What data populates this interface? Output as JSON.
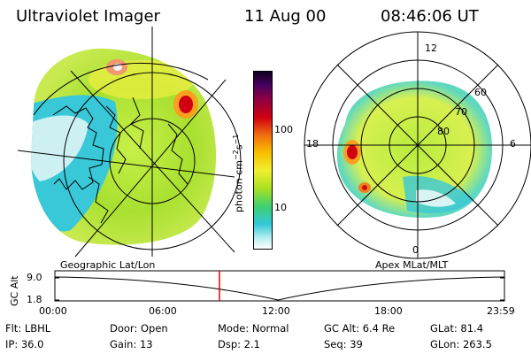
{
  "header": {
    "instrument": "Ultraviolet Imager",
    "date": "11 Aug 00",
    "time": "08:46:06 UT"
  },
  "colorbar": {
    "label": "photon cm",
    "label_sup1": "−2",
    "label_s": "s",
    "label_sup2": "−1",
    "ticks": [
      "100",
      "10"
    ]
  },
  "polar_plot": {
    "mlt_labels": [
      "12",
      "18",
      "6",
      "0"
    ],
    "lat_labels": [
      "60",
      "70",
      "80"
    ]
  },
  "projections": {
    "left_label": "Geographic Lat/Lon",
    "right_label": "Apex MLat/MLT"
  },
  "altitude_plot": {
    "ylabel": "GC Alt",
    "yticks": [
      "9.0",
      "1.8"
    ],
    "xticks": [
      "00:00",
      "06:00",
      "12:00",
      "18:00",
      "23:59"
    ],
    "current_time_fraction": 0.366
  },
  "info": {
    "filter": "Flt: LBHL",
    "ip": "IP: 36.0",
    "door": "Door: Open",
    "gain": "Gain: 13",
    "mode": "Mode: Normal",
    "dsp": "Dsp:    2.1",
    "gc_alt": "GC Alt: 6.4 Re",
    "seq": "Seq: 39",
    "glat": "GLat:  81.4",
    "glon": "GLon: 263.5"
  },
  "colors": {
    "current_time_marker": "#e00000",
    "aurora_low": "#30c8d0",
    "aurora_mid": "#a8e020",
    "aurora_high": "#d00010"
  }
}
